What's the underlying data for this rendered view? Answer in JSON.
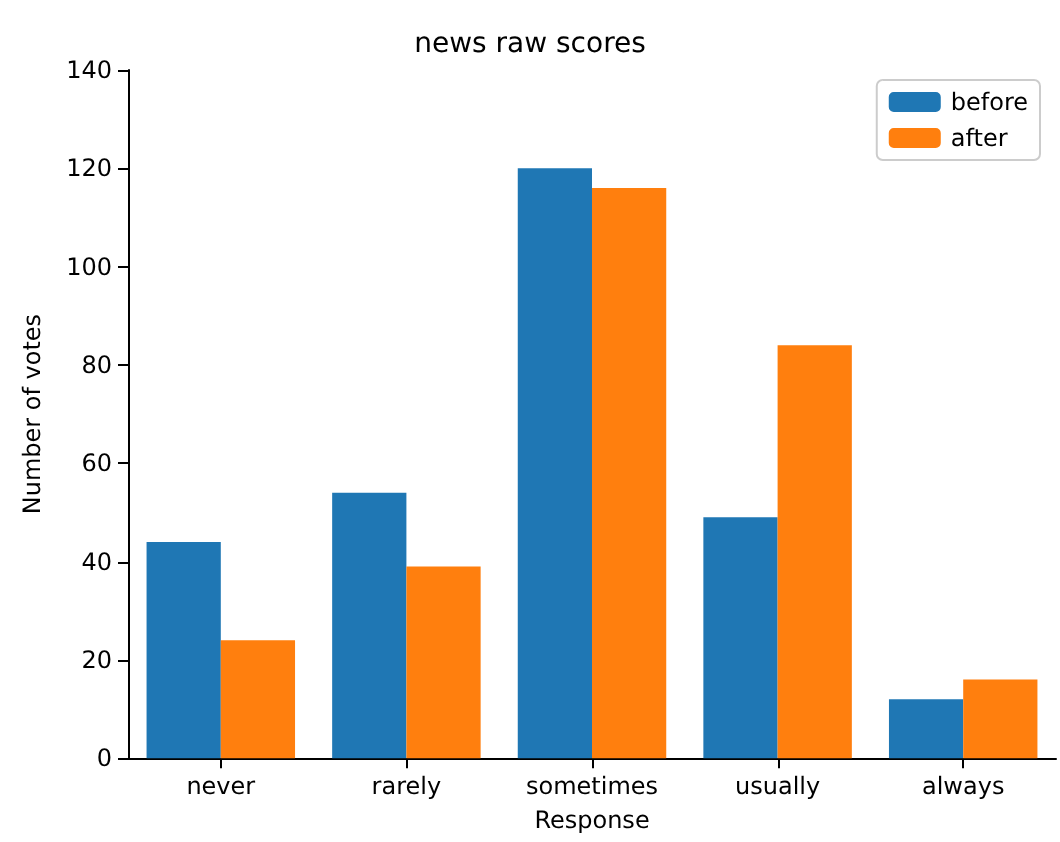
{
  "chart_data": {
    "type": "bar",
    "title": "news raw scores",
    "xlabel": "Response",
    "ylabel": "Number of votes",
    "categories": [
      "never",
      "rarely",
      "sometimes",
      "usually",
      "always"
    ],
    "series": [
      {
        "name": "before",
        "color": "#1f77b4",
        "values": [
          44,
          54,
          120,
          49,
          12
        ]
      },
      {
        "name": "after",
        "color": "#ff7f0e",
        "values": [
          24,
          39,
          116,
          84,
          16
        ]
      }
    ],
    "ylim": [
      0,
      140
    ],
    "yticks": [
      0,
      20,
      40,
      60,
      80,
      100,
      120,
      140
    ],
    "grid": false,
    "legend": "top right"
  }
}
